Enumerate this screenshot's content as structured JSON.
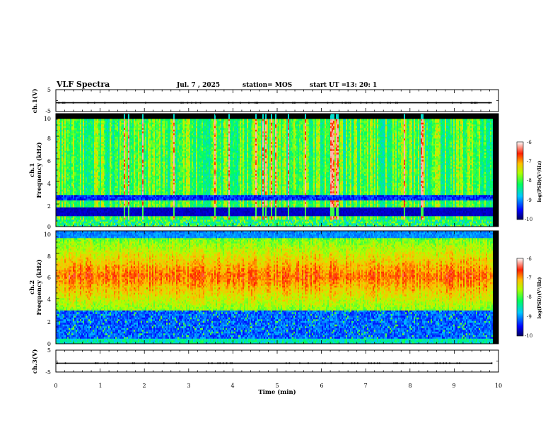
{
  "header": {
    "title": "VLF Spectra",
    "date": "Jul. 7 , 2025",
    "station": "station= MOS",
    "start": "start UT =",
    "start_time": "13: 20: 1"
  },
  "chart_data": [
    {
      "type": "line",
      "name": "ch1-voltage",
      "ylabel": "ch.1(V)",
      "ylim": [
        -5,
        5
      ],
      "yticks": [
        "5",
        "-5"
      ],
      "level": -1.0
    },
    {
      "type": "heatmap",
      "name": "ch1-spectrogram",
      "ylabel_top": "ch.1",
      "ylabel": "Frequency (kHz)",
      "ylim": [
        0,
        10
      ],
      "yticks": [
        "0",
        "2",
        "4",
        "6",
        "8",
        "10"
      ],
      "xlim_min": [
        0,
        10
      ],
      "colorbar": {
        "label": "log(PSD)(V²/Hz)",
        "range": [
          -10,
          -6
        ],
        "ticks": [
          "-6",
          "-7",
          "-8",
          "-9",
          "-10"
        ]
      },
      "description_hint": "spiky broadband emissions above ~1.5 kHz, quiet band below"
    },
    {
      "type": "heatmap",
      "name": "ch2-spectrogram",
      "ylabel_top": "ch.2",
      "ylabel": "Frequency (kHz)",
      "ylim": [
        0,
        10
      ],
      "yticks": [
        "0",
        "2",
        "4",
        "6",
        "8",
        "10"
      ],
      "xlim_min": [
        0,
        10
      ],
      "colorbar": {
        "label": "log(PSD)(V²/Hz)",
        "range": [
          -10,
          -6
        ],
        "ticks": [
          "-6",
          "-7",
          "-8",
          "-9",
          "-10"
        ]
      },
      "description_hint": "strong band centered near 6 kHz"
    },
    {
      "type": "line",
      "name": "ch3-voltage",
      "ylabel": "ch.3(V)",
      "ylim": [
        -5,
        5
      ],
      "yticks": [
        "5",
        "-5"
      ],
      "level": -1.0
    }
  ],
  "xaxis": {
    "label": "Time (min)",
    "range": [
      0,
      10
    ],
    "ticks": [
      "0",
      "1",
      "2",
      "3",
      "4",
      "5",
      "6",
      "7",
      "8",
      "9",
      "10"
    ],
    "data_end": 9.85
  },
  "colors": {
    "frame": "#000000",
    "background": "#ffffff"
  }
}
